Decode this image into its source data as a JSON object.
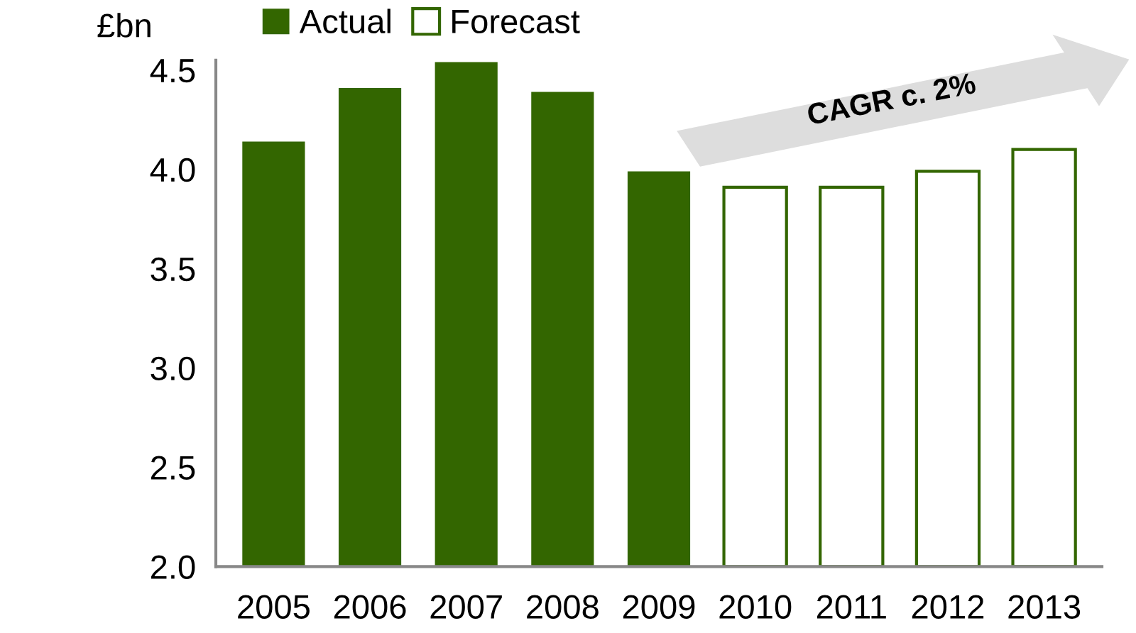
{
  "chart_data": {
    "type": "bar",
    "ylabel": "£bn",
    "categories": [
      "2005",
      "2006",
      "2007",
      "2008",
      "2009",
      "2010",
      "2011",
      "2012",
      "2013"
    ],
    "series": [
      {
        "name": "Actual",
        "color": "#336600",
        "values": [
          4.14,
          4.41,
          4.54,
          4.39,
          3.99,
          null,
          null,
          null,
          null
        ]
      },
      {
        "name": "Forecast",
        "color": "#336600",
        "values": [
          null,
          null,
          null,
          null,
          null,
          3.91,
          3.91,
          3.99,
          4.1
        ]
      }
    ],
    "ylim": [
      2.0,
      4.55
    ],
    "yticks": [
      {
        "value": 2.0,
        "label": "2.0"
      },
      {
        "value": 2.5,
        "label": "2.5"
      },
      {
        "value": 3.0,
        "label": "3.0"
      },
      {
        "value": 3.5,
        "label": "3.5"
      },
      {
        "value": 4.0,
        "label": "4.0"
      },
      {
        "value": 4.5,
        "label": "4.5"
      }
    ],
    "grid": false,
    "legend": "top left",
    "annotations": [
      "CAGR c. 2%"
    ]
  }
}
